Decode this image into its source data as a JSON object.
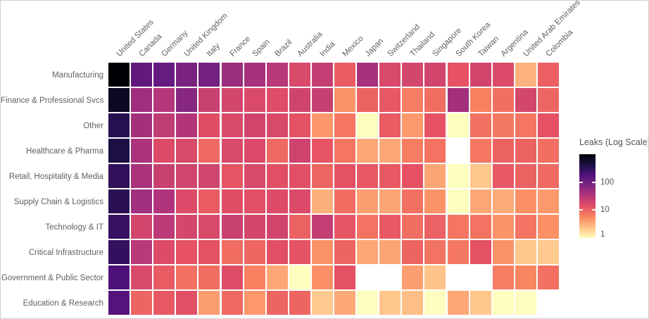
{
  "page": {
    "background": "#ffffff",
    "border_color": "#d0d0d0",
    "label_color": "#606060"
  },
  "chart_data": {
    "type": "heatmap",
    "scale": "log",
    "vmax": 1000,
    "vmin": 1,
    "colormap": "magma-reversed-dark-is-high",
    "colormap_stops": [
      "#000004",
      "#1c1044",
      "#4f127b",
      "#812581",
      "#b5367a",
      "#e55064",
      "#fb8761",
      "#fec287",
      "#fcfdbf"
    ],
    "missing_color": "#ffffff",
    "columns": [
      "United States",
      "Canada",
      "Germany",
      "United Kingdom",
      "Italy",
      "France",
      "Spain",
      "Brazil",
      "Australia",
      "India",
      "Mexico",
      "Japan",
      "Switzerland",
      "Thailand",
      "Singapore",
      "South Korea",
      "Taiwan",
      "Argentina",
      "United Arab Emirates",
      "Colombia"
    ],
    "rows": [
      "Manufacturing",
      "Finance & Professional Svcs",
      "Other",
      "Healthcare & Pharma",
      "Retail, Hospitality & Media",
      "Supply Chain & Logistics",
      "Technology & IT",
      "Critical Infrastructure",
      "Government & Public Sector",
      "Education & Research"
    ],
    "values": [
      [
        1000,
        130,
        120,
        85,
        95,
        50,
        40,
        30,
        17,
        24,
        11,
        40,
        17,
        18,
        19,
        13,
        19,
        16,
        3,
        10.5
      ],
      [
        650,
        45,
        31,
        68,
        22,
        18,
        16,
        15,
        20,
        23,
        4.8,
        10,
        12,
        6.5,
        8.5,
        42,
        6.3,
        8.3,
        18,
        9.5
      ],
      [
        350,
        42,
        26,
        33,
        14.5,
        17,
        19,
        16.5,
        13.5,
        4.5,
        7.2,
        1,
        11,
        4.3,
        13,
        1,
        8,
        7,
        7.4,
        13
      ],
      [
        420,
        37,
        15.5,
        17,
        9,
        17,
        16,
        9,
        20,
        12.5,
        7.5,
        3.5,
        3.5,
        6.6,
        7.8,
        null,
        7.3,
        10,
        10,
        8.2
      ],
      [
        300,
        38,
        22,
        19.5,
        19.5,
        12.5,
        17,
        14,
        14,
        9.4,
        13.5,
        12,
        11.5,
        13,
        3.6,
        1,
        2.2,
        12,
        10,
        8.8
      ],
      [
        330,
        45,
        35,
        16,
        11.3,
        14.5,
        14.3,
        15.5,
        16,
        3.1,
        8.4,
        4,
        3.7,
        8,
        4.8,
        1,
        3.5,
        3.3,
        4.9,
        4.3
      ],
      [
        270,
        19,
        28,
        18,
        17,
        22,
        18,
        19,
        10,
        24,
        12.3,
        7.8,
        11.5,
        8.2,
        10.2,
        7.4,
        7.8,
        4.7,
        7.6,
        4.9
      ],
      [
        280,
        29,
        15.5,
        13,
        13.5,
        8.4,
        9.3,
        14,
        12.6,
        4.8,
        9.6,
        3.5,
        3.7,
        9.8,
        7.7,
        7,
        13.5,
        4.8,
        2.2,
        2.1
      ],
      [
        180,
        17,
        11.2,
        8,
        8.3,
        15,
        6.2,
        3.5,
        1,
        5,
        13.5,
        null,
        null,
        4,
        2.3,
        null,
        null,
        6.6,
        5.8,
        8
      ],
      [
        160,
        9.6,
        11.8,
        14,
        4.1,
        9,
        4.4,
        9.6,
        9.8,
        2.1,
        3.4,
        1,
        2.2,
        2.5,
        1,
        3.5,
        2.2,
        1,
        1,
        null
      ]
    ],
    "legend": {
      "title": "Leaks (Log Scale)",
      "ticks": [
        100,
        10,
        1
      ]
    }
  }
}
